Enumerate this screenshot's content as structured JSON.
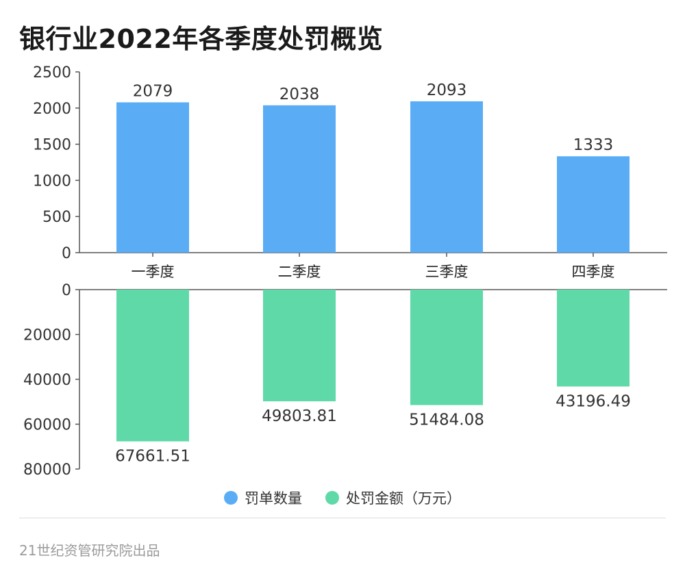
{
  "title": "银行业2022年各季度处罚概览",
  "source": "21世纪资管研究院出品",
  "chart_data": {
    "type": "bar",
    "categories": [
      "一季度",
      "二季度",
      "三季度",
      "四季度"
    ],
    "series": [
      {
        "name": "罚单数量",
        "values": [
          2079,
          2038,
          2093,
          1333
        ],
        "color": "#5aacf5",
        "ylim": [
          0,
          2500
        ],
        "ticks": [
          "0",
          "500",
          "1000",
          "1500",
          "2000",
          "2500"
        ],
        "labels": [
          "2079",
          "2038",
          "2093",
          "1333"
        ]
      },
      {
        "name": "处罚金额（万元）",
        "values": [
          67661.51,
          49803.81,
          51484.08,
          43196.49
        ],
        "color": "#5fd9a8",
        "ylim": [
          0,
          80000
        ],
        "ticks": [
          "0",
          "20000",
          "40000",
          "60000",
          "80000"
        ],
        "labels": [
          "67661.51",
          "49803.81",
          "51484.08",
          "43196.49"
        ]
      }
    ],
    "legend": "bottom",
    "grid": false
  }
}
